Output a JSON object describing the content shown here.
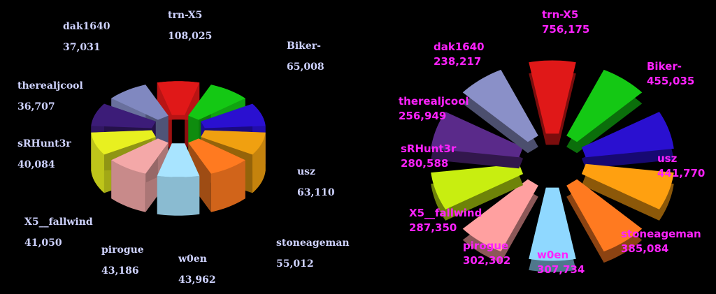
{
  "chart_data": [
    {
      "type": "pie",
      "categories": [
        "trn-X5",
        "Biker-",
        "usz",
        "stoneageman",
        "w0en",
        "pirogue",
        "X5__fallwind",
        "sRHunt3r",
        "therealjcool",
        "dak1640"
      ],
      "value_labels": [
        "108,025",
        "65,008",
        "63,110",
        "55,012",
        "43,962",
        "43,186",
        "41,050",
        "40,084",
        "36,707",
        "37,031"
      ],
      "values": [
        108025,
        65008,
        63110,
        55012,
        43962,
        43186,
        41050,
        40084,
        36707,
        37031
      ],
      "colors": [
        "#e01818",
        "#14c814",
        "#2a10d0",
        "#f0a010",
        "#ff7a20",
        "#a8e4ff",
        "#f4a8a8",
        "#e8f020",
        "#3c1c78",
        "#8088c0"
      ],
      "style": "exploded-3d"
    },
    {
      "type": "pie",
      "categories": [
        "trn-X5",
        "Biker-",
        "usz",
        "stoneageman",
        "w0en",
        "pirogue",
        "X5__fallwind",
        "sRHunt3r",
        "therealjcool",
        "dak1640"
      ],
      "value_labels": [
        "756,175",
        "455,035",
        "441,770",
        "385,084",
        "307,734",
        "302,302",
        "287,350",
        "280,588",
        "256,949",
        "238,217"
      ],
      "values": [
        756175,
        455035,
        441770,
        385084,
        307734,
        302302,
        287350,
        280588,
        256949,
        238217
      ],
      "colors": [
        "#e01818",
        "#14c814",
        "#2a10d0",
        "#ffa010",
        "#ff7a20",
        "#8fd8ff",
        "#ffa0a0",
        "#c8ee10",
        "#5a2a8a",
        "#8a90c8"
      ],
      "style": "exploded"
    }
  ]
}
